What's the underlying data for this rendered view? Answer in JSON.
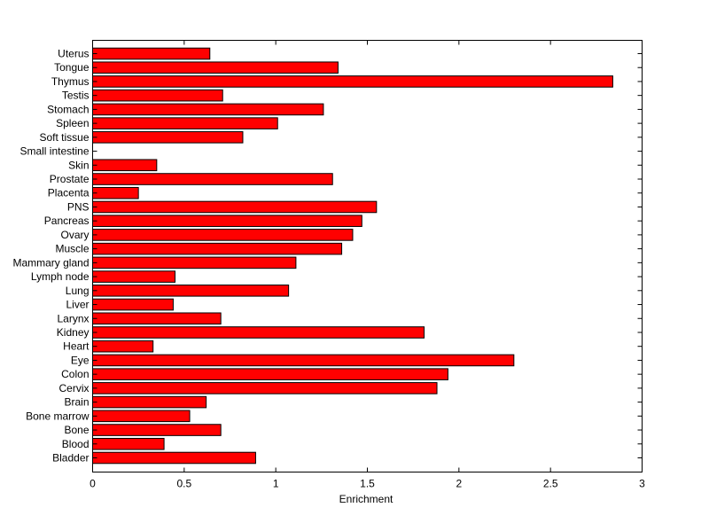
{
  "chart_data": {
    "type": "bar",
    "orientation": "horizontal",
    "title": "",
    "xlabel": "Enrichment",
    "ylabel": "",
    "xlim": [
      0,
      3
    ],
    "xticks": [
      "0",
      "0.5",
      "1",
      "1.5",
      "2",
      "2.5",
      "3"
    ],
    "grid": false,
    "legend": "none",
    "bar_color": "#ff0000",
    "edge_color": "#000000",
    "categories": [
      "Bladder",
      "Blood",
      "Bone",
      "Bone marrow",
      "Brain",
      "Cervix",
      "Colon",
      "Eye",
      "Heart",
      "Kidney",
      "Larynx",
      "Liver",
      "Lung",
      "Lymph node",
      "Mammary gland",
      "Muscle",
      "Ovary",
      "Pancreas",
      "PNS",
      "Placenta",
      "Prostate",
      "Skin",
      "Small intestine",
      "Soft tissue",
      "Spleen",
      "Stomach",
      "Testis",
      "Thymus",
      "Tongue",
      "Uterus"
    ],
    "values": [
      0.89,
      0.39,
      0.7,
      0.53,
      0.62,
      1.88,
      1.94,
      2.3,
      0.33,
      1.81,
      0.7,
      0.44,
      1.07,
      0.45,
      1.11,
      1.36,
      1.42,
      1.47,
      1.55,
      0.25,
      1.31,
      0.35,
      0.0,
      0.82,
      1.01,
      1.26,
      0.71,
      2.84,
      1.34,
      0.64
    ]
  }
}
